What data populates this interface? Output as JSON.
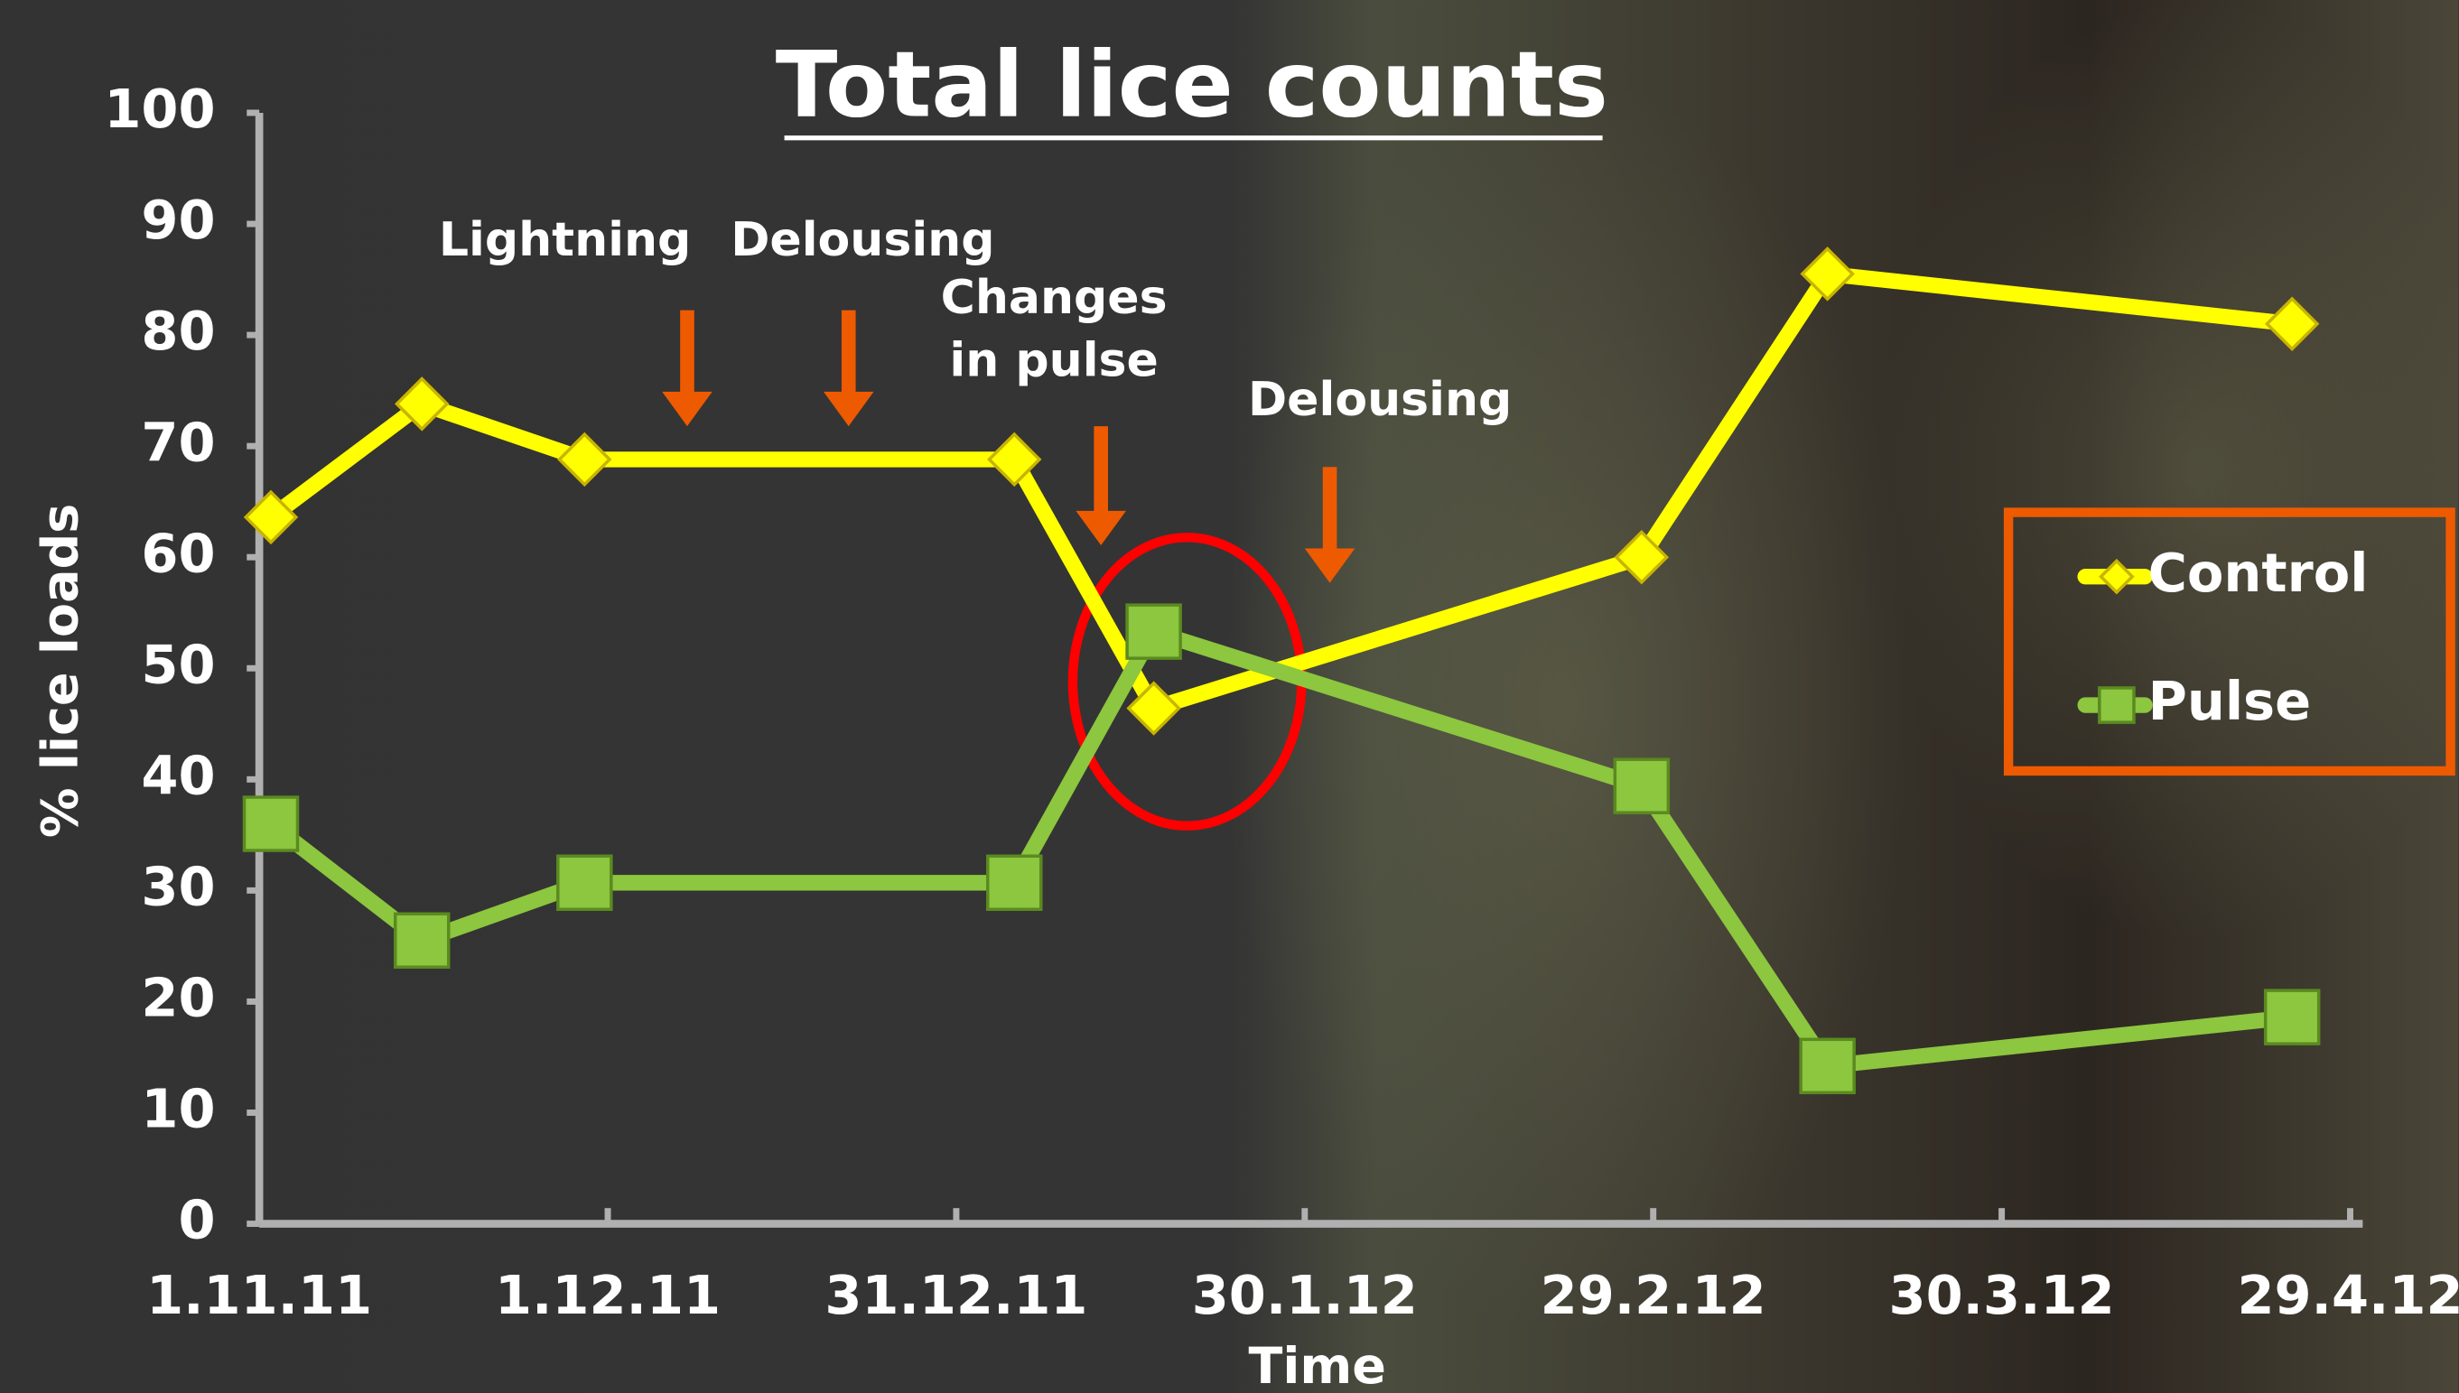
{
  "chart_data": {
    "type": "line",
    "title": "Total lice counts",
    "y_label": "% lice loads",
    "x_label": "Time",
    "x": [
      "2011-11-02",
      "2011-11-15",
      "2011-11-29",
      "2012-01-05",
      "2012-01-17",
      "2012-02-28",
      "2012-03-15",
      "2012-04-24"
    ],
    "series": [
      {
        "name": "Control",
        "color": "#ffff00",
        "marker": "diamond",
        "values": [
          63.6,
          73.8,
          68.8,
          68.8,
          46.4,
          60,
          85.5,
          81
        ]
      },
      {
        "name": "Pulse",
        "color": "#8dc63f",
        "marker": "square",
        "values": [
          36,
          25.5,
          30.7,
          30.7,
          53.3,
          39.4,
          14.2,
          18.6
        ]
      }
    ],
    "xlim": [
      "2011-11-01",
      "2012-04-29"
    ],
    "xticks": [
      {
        "value": "2011-11-01",
        "label": "1.11.11"
      },
      {
        "value": "2011-12-01",
        "label": "1.12.11"
      },
      {
        "value": "2011-12-31",
        "label": "31.12.11"
      },
      {
        "value": "2012-01-30",
        "label": "30.1.12"
      },
      {
        "value": "2012-02-29",
        "label": "29.2.12"
      },
      {
        "value": "2012-03-30",
        "label": "30.3.12"
      },
      {
        "value": "2012-04-29",
        "label": "29.4.12"
      }
    ],
    "ylim": [
      0,
      100
    ],
    "yticks": [
      0,
      10,
      20,
      30,
      40,
      50,
      60,
      70,
      80,
      90,
      100
    ],
    "legend": "right",
    "annotations": [
      {
        "lines": [
          "Lightning"
        ]
      },
      {
        "lines": [
          "Delousing"
        ]
      },
      {
        "lines": [
          "Changes",
          "in pulse"
        ]
      },
      {
        "lines": [
          "Delousing"
        ]
      }
    ]
  }
}
